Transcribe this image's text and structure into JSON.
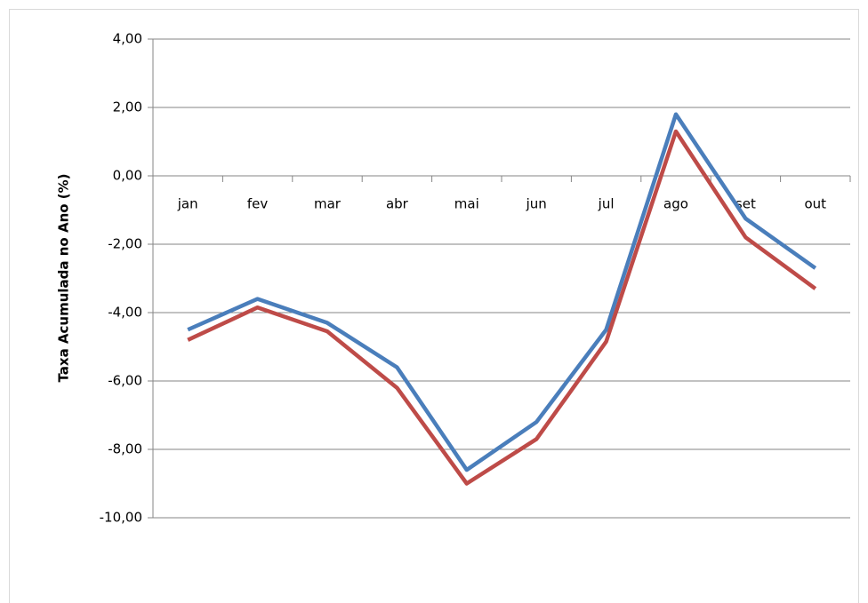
{
  "chart_data": {
    "type": "line",
    "y_label": "Taxa Acumulada no Ano (%)",
    "categories": [
      "jan",
      "fev",
      "mar",
      "abr",
      "mai",
      "jun",
      "jul",
      "ago",
      "set",
      "out"
    ],
    "series": [
      {
        "color": "#4a7ebb",
        "values": [
          -4.5,
          -3.6,
          -4.3,
          -5.6,
          -8.6,
          -7.2,
          -4.5,
          1.8,
          -1.25,
          -2.7
        ]
      },
      {
        "color": "#be4b48",
        "values": [
          -4.8,
          -3.85,
          -4.55,
          -6.2,
          -9.0,
          -7.7,
          -4.85,
          1.3,
          -1.8,
          -3.3
        ]
      }
    ],
    "ylim": [
      -10,
      4
    ],
    "yticks": [
      {
        "value": -10,
        "label": "-10,00"
      },
      {
        "value": -8,
        "label": "-8,00"
      },
      {
        "value": -6,
        "label": "-6,00"
      },
      {
        "value": -4,
        "label": "-4,00"
      },
      {
        "value": -2,
        "label": "-2,00"
      },
      {
        "value": 0,
        "label": "0,00"
      },
      {
        "value": 2,
        "label": "2,00"
      },
      {
        "value": 4,
        "label": "4,00"
      }
    ],
    "grid": true
  }
}
